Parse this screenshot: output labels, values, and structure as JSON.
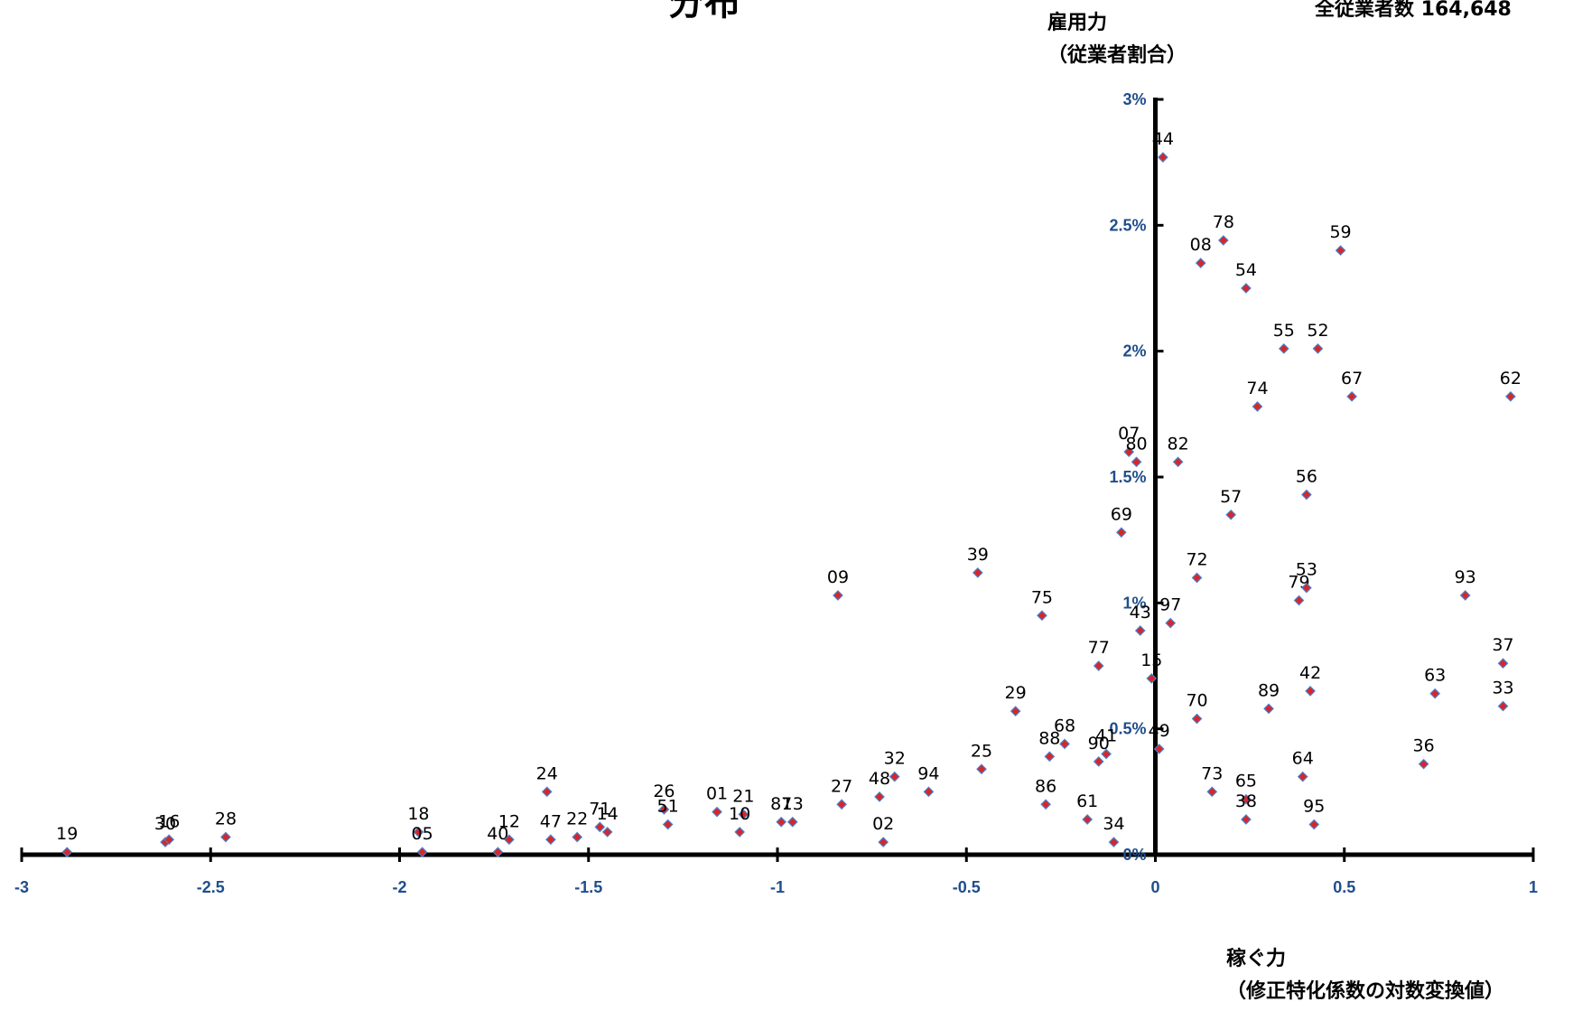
{
  "chart_data": {
    "type": "scatter",
    "title": "分布",
    "total_label": "全従業者数 164,648",
    "ylabel": [
      "雇用力",
      "（従業者割合）"
    ],
    "xlabel": [
      "稼ぐ力",
      "（修正特化係数の対数変換値）"
    ],
    "xlim": [
      -3,
      1
    ],
    "ylim": [
      0,
      3
    ],
    "x_ticks": [
      "-3",
      "-2.5",
      "-2",
      "-1.5",
      "-1",
      "-0.5",
      "0",
      "0.5",
      "1"
    ],
    "y_ticks": [
      "0%",
      "0.5%",
      "1%",
      "1.5%",
      "2%",
      "2.5%",
      "3%"
    ],
    "colors": {
      "marker_fill": "#d62728",
      "marker_stroke": "#4a7fcc",
      "tick_text": "#1f4e8c",
      "axis": "#000000"
    },
    "points": [
      {
        "label": "19",
        "x": -2.88,
        "y": 0.01
      },
      {
        "label": "30",
        "x": -2.62,
        "y": 0.05
      },
      {
        "label": "16",
        "x": -2.61,
        "y": 0.06
      },
      {
        "label": "28",
        "x": -2.46,
        "y": 0.07
      },
      {
        "label": "18",
        "x": -1.95,
        "y": 0.09
      },
      {
        "label": "05",
        "x": -1.94,
        "y": 0.01
      },
      {
        "label": "40",
        "x": -1.74,
        "y": 0.01
      },
      {
        "label": "12",
        "x": -1.71,
        "y": 0.06
      },
      {
        "label": "24",
        "x": -1.61,
        "y": 0.25
      },
      {
        "label": "47",
        "x": -1.6,
        "y": 0.06
      },
      {
        "label": "22",
        "x": -1.53,
        "y": 0.07
      },
      {
        "label": "71",
        "x": -1.47,
        "y": 0.11
      },
      {
        "label": "14",
        "x": -1.45,
        "y": 0.09
      },
      {
        "label": "26",
        "x": -1.3,
        "y": 0.18
      },
      {
        "label": "51",
        "x": -1.29,
        "y": 0.12
      },
      {
        "label": "01",
        "x": -1.16,
        "y": 0.17
      },
      {
        "label": "21",
        "x": -1.09,
        "y": 0.16
      },
      {
        "label": "10",
        "x": -1.1,
        "y": 0.09
      },
      {
        "label": "87",
        "x": -0.99,
        "y": 0.13
      },
      {
        "label": "13",
        "x": -0.96,
        "y": 0.13
      },
      {
        "label": "09",
        "x": -0.84,
        "y": 1.03
      },
      {
        "label": "27",
        "x": -0.83,
        "y": 0.2
      },
      {
        "label": "48",
        "x": -0.73,
        "y": 0.23
      },
      {
        "label": "02",
        "x": -0.72,
        "y": 0.05
      },
      {
        "label": "32",
        "x": -0.69,
        "y": 0.31
      },
      {
        "label": "94",
        "x": -0.6,
        "y": 0.25
      },
      {
        "label": "39",
        "x": -0.47,
        "y": 1.12
      },
      {
        "label": "25",
        "x": -0.46,
        "y": 0.34
      },
      {
        "label": "29",
        "x": -0.37,
        "y": 0.57
      },
      {
        "label": "75",
        "x": -0.3,
        "y": 0.95
      },
      {
        "label": "88",
        "x": -0.28,
        "y": 0.39
      },
      {
        "label": "86",
        "x": -0.29,
        "y": 0.2
      },
      {
        "label": "68",
        "x": -0.24,
        "y": 0.44
      },
      {
        "label": "61",
        "x": -0.18,
        "y": 0.14
      },
      {
        "label": "77",
        "x": -0.15,
        "y": 0.75
      },
      {
        "label": "90",
        "x": -0.15,
        "y": 0.37
      },
      {
        "label": "41",
        "x": -0.13,
        "y": 0.4
      },
      {
        "label": "34",
        "x": -0.11,
        "y": 0.05
      },
      {
        "label": "69",
        "x": -0.09,
        "y": 1.28
      },
      {
        "label": "07",
        "x": -0.07,
        "y": 1.6
      },
      {
        "label": "80",
        "x": -0.05,
        "y": 1.56
      },
      {
        "label": "43",
        "x": -0.04,
        "y": 0.89
      },
      {
        "label": "15",
        "x": -0.01,
        "y": 0.7
      },
      {
        "label": "49",
        "x": 0.01,
        "y": 0.42
      },
      {
        "label": "44",
        "x": 0.02,
        "y": 2.77
      },
      {
        "label": "97",
        "x": 0.04,
        "y": 0.92
      },
      {
        "label": "82",
        "x": 0.06,
        "y": 1.56
      },
      {
        "label": "70",
        "x": 0.11,
        "y": 0.54
      },
      {
        "label": "72",
        "x": 0.11,
        "y": 1.1
      },
      {
        "label": "08",
        "x": 0.12,
        "y": 2.35
      },
      {
        "label": "73",
        "x": 0.15,
        "y": 0.25
      },
      {
        "label": "78",
        "x": 0.18,
        "y": 2.44
      },
      {
        "label": "57",
        "x": 0.2,
        "y": 1.35
      },
      {
        "label": "65",
        "x": 0.24,
        "y": 0.22
      },
      {
        "label": "38",
        "x": 0.24,
        "y": 0.14
      },
      {
        "label": "54",
        "x": 0.24,
        "y": 2.25
      },
      {
        "label": "74",
        "x": 0.27,
        "y": 1.78
      },
      {
        "label": "89",
        "x": 0.3,
        "y": 0.58
      },
      {
        "label": "55",
        "x": 0.34,
        "y": 2.01
      },
      {
        "label": "79",
        "x": 0.38,
        "y": 1.01
      },
      {
        "label": "64",
        "x": 0.39,
        "y": 0.31
      },
      {
        "label": "53",
        "x": 0.4,
        "y": 1.06
      },
      {
        "label": "56",
        "x": 0.4,
        "y": 1.43
      },
      {
        "label": "42",
        "x": 0.41,
        "y": 0.65
      },
      {
        "label": "95",
        "x": 0.42,
        "y": 0.12
      },
      {
        "label": "52",
        "x": 0.43,
        "y": 2.01
      },
      {
        "label": "59",
        "x": 0.49,
        "y": 2.4
      },
      {
        "label": "67",
        "x": 0.52,
        "y": 1.82
      },
      {
        "label": "36",
        "x": 0.71,
        "y": 0.36
      },
      {
        "label": "63",
        "x": 0.74,
        "y": 0.64
      },
      {
        "label": "93",
        "x": 0.82,
        "y": 1.03
      },
      {
        "label": "37",
        "x": 0.92,
        "y": 0.76
      },
      {
        "label": "33",
        "x": 0.92,
        "y": 0.59
      },
      {
        "label": "62",
        "x": 0.94,
        "y": 1.82
      }
    ]
  }
}
